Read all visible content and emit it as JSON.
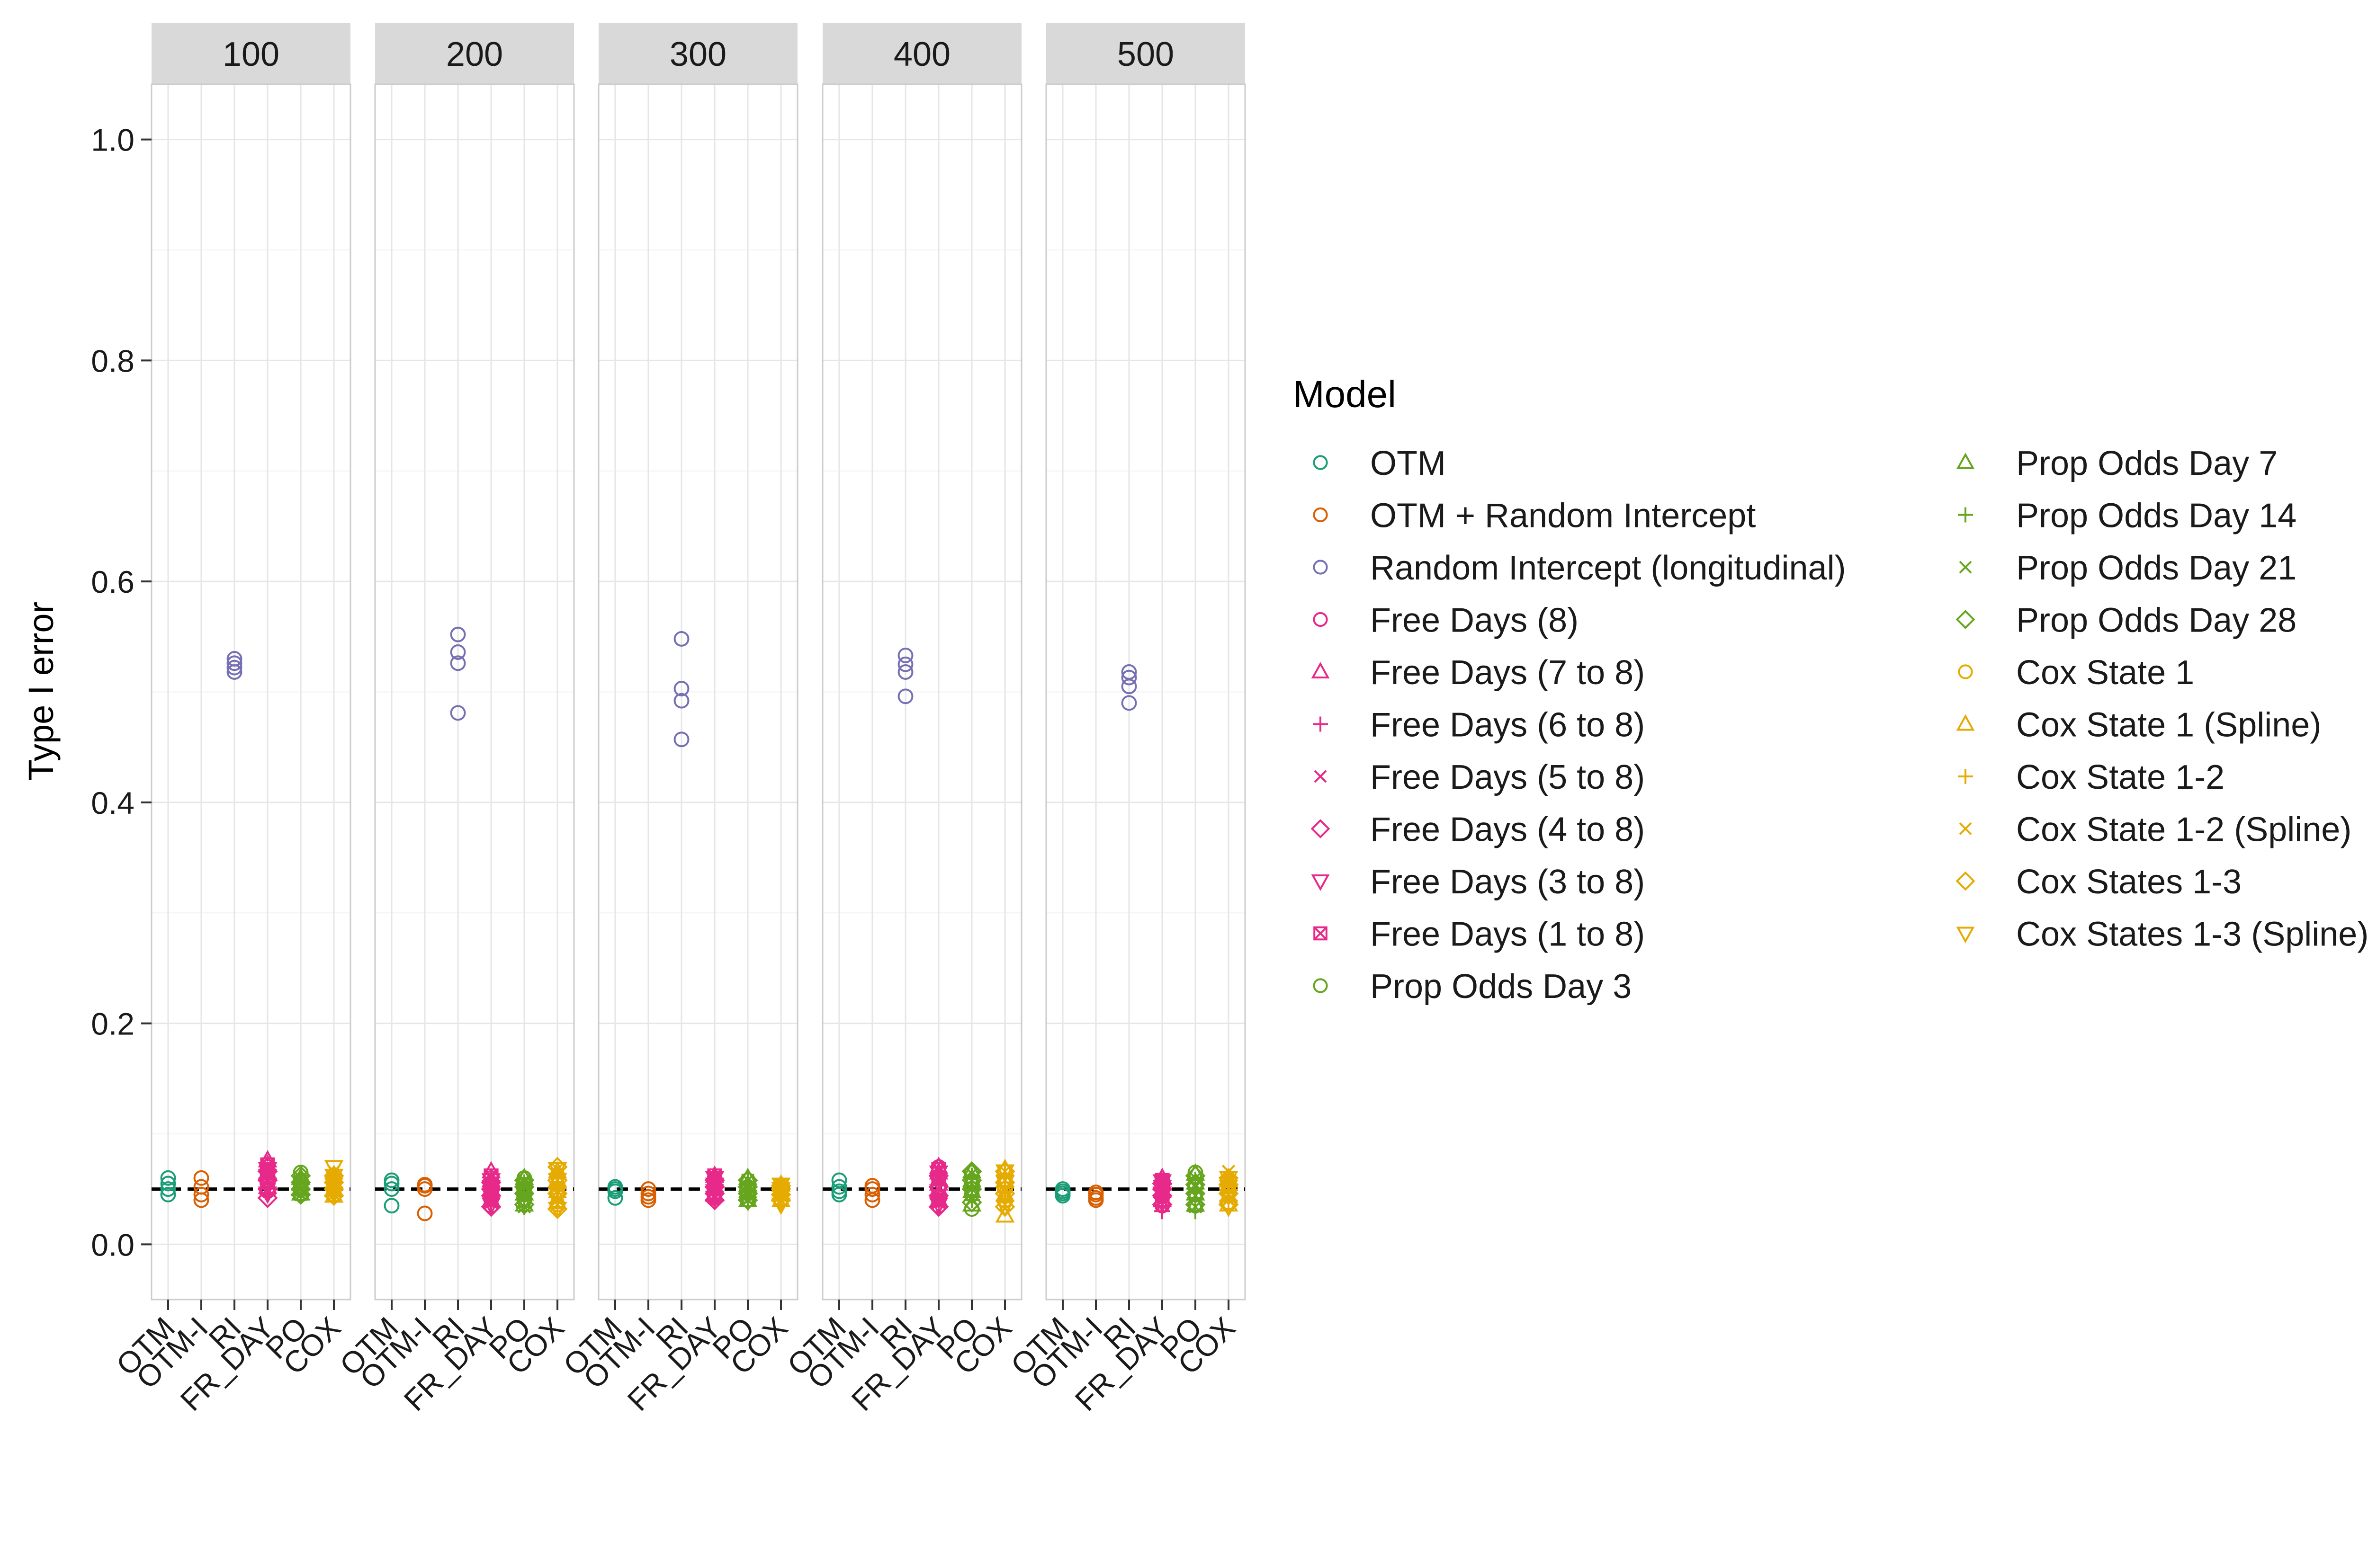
{
  "chart_data": {
    "type": "scatter",
    "facet_variable_values": [
      "100",
      "200",
      "300",
      "400",
      "500"
    ],
    "ylabel": "Type I error",
    "xlabel": "",
    "ylim": [
      -0.05,
      1.05
    ],
    "y_ticks": [
      0.0,
      0.2,
      0.4,
      0.6,
      0.8,
      1.0
    ],
    "y_tick_labels": [
      "0.0",
      "0.2",
      "0.4",
      "0.6",
      "0.8",
      "1.0"
    ],
    "categories": [
      "OTM",
      "OTM-I",
      "RI",
      "FR_DAY",
      "PO",
      "COX"
    ],
    "reference_line": 0.05,
    "grid": true,
    "legend_title": "Model",
    "legend_position": "right",
    "series": [
      {
        "name": "OTM",
        "category": "OTM",
        "shape": "circle",
        "color": "#1B9E77",
        "values": {
          "100": [
            0.045,
            0.05,
            0.055,
            0.06
          ],
          "200": [
            0.035,
            0.05,
            0.055,
            0.058
          ],
          "300": [
            0.042,
            0.048,
            0.05,
            0.052
          ],
          "400": [
            0.045,
            0.048,
            0.052,
            0.058
          ],
          "500": [
            0.044,
            0.046,
            0.048,
            0.05
          ]
        }
      },
      {
        "name": "OTM + Random Intercept",
        "category": "OTM-I",
        "shape": "circle",
        "color": "#D95F02",
        "values": {
          "100": [
            0.04,
            0.045,
            0.052,
            0.06
          ],
          "200": [
            0.028,
            0.05,
            0.053,
            0.054
          ],
          "300": [
            0.04,
            0.043,
            0.046,
            0.05
          ],
          "400": [
            0.04,
            0.045,
            0.05,
            0.053
          ],
          "500": [
            0.04,
            0.042,
            0.045,
            0.047
          ]
        }
      },
      {
        "name": "Random Intercept (longitudinal)",
        "category": "RI",
        "shape": "circle",
        "color": "#7570B3",
        "values": {
          "100": [
            0.518,
            0.522,
            0.526,
            0.53
          ],
          "200": [
            0.481,
            0.526,
            0.536,
            0.552
          ],
          "300": [
            0.457,
            0.492,
            0.503,
            0.548
          ],
          "400": [
            0.496,
            0.518,
            0.525,
            0.533
          ],
          "500": [
            0.49,
            0.505,
            0.513,
            0.518
          ]
        }
      },
      {
        "name": "Free Days (8)",
        "category": "FR_DAY",
        "shape": "circle",
        "color": "#E7298A",
        "values": {
          "100": [
            0.048,
            0.055,
            0.062,
            0.07
          ],
          "200": [
            0.035,
            0.045,
            0.052,
            0.06
          ],
          "300": [
            0.042,
            0.05,
            0.055,
            0.06
          ],
          "400": [
            0.035,
            0.05,
            0.06,
            0.07
          ],
          "500": [
            0.035,
            0.045,
            0.052,
            0.058
          ]
        }
      },
      {
        "name": "Free Days (7 to 8)",
        "category": "FR_DAY",
        "shape": "triangle",
        "color": "#E7298A",
        "values": {
          "100": [
            0.052,
            0.065,
            0.072,
            0.076
          ],
          "200": [
            0.04,
            0.05,
            0.058,
            0.066
          ],
          "300": [
            0.045,
            0.052,
            0.058,
            0.062
          ],
          "400": [
            0.04,
            0.055,
            0.065,
            0.07
          ],
          "500": [
            0.04,
            0.048,
            0.055,
            0.06
          ]
        }
      },
      {
        "name": "Free Days (6 to 8)",
        "category": "FR_DAY",
        "shape": "plus",
        "color": "#E7298A",
        "values": {
          "100": [
            0.045,
            0.055,
            0.06,
            0.065
          ],
          "200": [
            0.035,
            0.042,
            0.05,
            0.058
          ],
          "300": [
            0.04,
            0.048,
            0.052,
            0.058
          ],
          "400": [
            0.036,
            0.046,
            0.055,
            0.064
          ],
          "500": [
            0.03,
            0.042,
            0.05,
            0.056
          ]
        }
      },
      {
        "name": "Free Days (5 to 8)",
        "category": "FR_DAY",
        "shape": "cross",
        "color": "#E7298A",
        "values": {
          "100": [
            0.05,
            0.058,
            0.064,
            0.07
          ],
          "200": [
            0.038,
            0.046,
            0.052,
            0.06
          ],
          "300": [
            0.042,
            0.05,
            0.056,
            0.06
          ],
          "400": [
            0.038,
            0.05,
            0.058,
            0.066
          ],
          "500": [
            0.036,
            0.045,
            0.052,
            0.058
          ]
        }
      },
      {
        "name": "Free Days (4 to 8)",
        "category": "FR_DAY",
        "shape": "diamond",
        "color": "#E7298A",
        "values": {
          "100": [
            0.042,
            0.05,
            0.058,
            0.066
          ],
          "200": [
            0.034,
            0.044,
            0.05,
            0.056
          ],
          "300": [
            0.04,
            0.046,
            0.052,
            0.058
          ],
          "400": [
            0.034,
            0.044,
            0.052,
            0.062
          ],
          "500": [
            0.036,
            0.044,
            0.05,
            0.055
          ]
        }
      },
      {
        "name": "Free Days (3 to 8)",
        "category": "FR_DAY",
        "shape": "triangle-down",
        "color": "#E7298A",
        "values": {
          "100": [
            0.046,
            0.054,
            0.062,
            0.068
          ],
          "200": [
            0.036,
            0.044,
            0.052,
            0.058
          ],
          "300": [
            0.042,
            0.048,
            0.054,
            0.06
          ],
          "400": [
            0.036,
            0.048,
            0.056,
            0.065
          ],
          "500": [
            0.038,
            0.046,
            0.052,
            0.057
          ]
        }
      },
      {
        "name": "Free Days (1 to 8)",
        "category": "FR_DAY",
        "shape": "square-cross",
        "color": "#E7298A",
        "values": {
          "100": [
            0.05,
            0.058,
            0.065,
            0.072
          ],
          "200": [
            0.04,
            0.048,
            0.054,
            0.062
          ],
          "300": [
            0.044,
            0.05,
            0.056,
            0.062
          ],
          "400": [
            0.04,
            0.05,
            0.06,
            0.068
          ],
          "500": [
            0.04,
            0.048,
            0.054,
            0.058
          ]
        }
      },
      {
        "name": "Prop Odds Day 3",
        "category": "PO",
        "shape": "circle",
        "color": "#66A61E",
        "values": {
          "100": [
            0.045,
            0.052,
            0.058,
            0.065
          ],
          "200": [
            0.04,
            0.048,
            0.054,
            0.06
          ],
          "300": [
            0.04,
            0.046,
            0.052,
            0.058
          ],
          "400": [
            0.032,
            0.045,
            0.055,
            0.065
          ],
          "500": [
            0.035,
            0.045,
            0.055,
            0.065
          ]
        }
      },
      {
        "name": "Prop Odds Day 7",
        "category": "PO",
        "shape": "triangle",
        "color": "#66A61E",
        "values": {
          "100": [
            0.046,
            0.05,
            0.055,
            0.06
          ],
          "200": [
            0.036,
            0.046,
            0.052,
            0.06
          ],
          "300": [
            0.04,
            0.048,
            0.054,
            0.06
          ],
          "400": [
            0.036,
            0.048,
            0.058,
            0.066
          ],
          "500": [
            0.036,
            0.046,
            0.056,
            0.064
          ]
        }
      },
      {
        "name": "Prop Odds Day 14",
        "category": "PO",
        "shape": "plus",
        "color": "#66A61E",
        "values": {
          "100": [
            0.044,
            0.05,
            0.054,
            0.058
          ],
          "200": [
            0.034,
            0.044,
            0.05,
            0.056
          ],
          "300": [
            0.038,
            0.045,
            0.05,
            0.056
          ],
          "400": [
            0.04,
            0.05,
            0.056,
            0.062
          ],
          "500": [
            0.03,
            0.042,
            0.05,
            0.058
          ]
        }
      },
      {
        "name": "Prop Odds Day 21",
        "category": "PO",
        "shape": "cross",
        "color": "#66A61E",
        "values": {
          "100": [
            0.045,
            0.05,
            0.056,
            0.06
          ],
          "200": [
            0.034,
            0.046,
            0.052,
            0.058
          ],
          "300": [
            0.04,
            0.046,
            0.052,
            0.058
          ],
          "400": [
            0.04,
            0.05,
            0.058,
            0.064
          ],
          "500": [
            0.034,
            0.044,
            0.052,
            0.06
          ]
        }
      },
      {
        "name": "Prop Odds Day 28",
        "category": "PO",
        "shape": "diamond",
        "color": "#66A61E",
        "values": {
          "100": [
            0.045,
            0.05,
            0.056,
            0.062
          ],
          "200": [
            0.036,
            0.046,
            0.052,
            0.058
          ],
          "300": [
            0.04,
            0.046,
            0.052,
            0.058
          ],
          "400": [
            0.038,
            0.05,
            0.058,
            0.066
          ],
          "500": [
            0.036,
            0.046,
            0.054,
            0.062
          ]
        }
      },
      {
        "name": "Cox State 1",
        "category": "COX",
        "shape": "circle",
        "color": "#E6AB02",
        "values": {
          "100": [
            0.045,
            0.05,
            0.055,
            0.06
          ],
          "200": [
            0.036,
            0.046,
            0.054,
            0.062
          ],
          "300": [
            0.04,
            0.045,
            0.05,
            0.053
          ],
          "400": [
            0.04,
            0.05,
            0.058,
            0.066
          ],
          "500": [
            0.038,
            0.046,
            0.052,
            0.058
          ]
        }
      },
      {
        "name": "Cox State 1 (Spline)",
        "category": "COX",
        "shape": "triangle",
        "color": "#E6AB02",
        "values": {
          "100": [
            0.044,
            0.05,
            0.056,
            0.062
          ],
          "200": [
            0.038,
            0.048,
            0.058,
            0.066
          ],
          "300": [
            0.04,
            0.045,
            0.05,
            0.054
          ],
          "400": [
            0.026,
            0.045,
            0.058,
            0.068
          ],
          "500": [
            0.036,
            0.044,
            0.052,
            0.058
          ]
        }
      },
      {
        "name": "Cox State 1-2",
        "category": "COX",
        "shape": "plus",
        "color": "#E6AB02",
        "values": {
          "100": [
            0.046,
            0.052,
            0.058,
            0.064
          ],
          "200": [
            0.034,
            0.046,
            0.056,
            0.064
          ],
          "300": [
            0.036,
            0.044,
            0.05,
            0.054
          ],
          "400": [
            0.038,
            0.048,
            0.056,
            0.064
          ],
          "500": [
            0.04,
            0.048,
            0.054,
            0.06
          ]
        }
      },
      {
        "name": "Cox State 1-2 (Spline)",
        "category": "COX",
        "shape": "cross",
        "color": "#E6AB02",
        "values": {
          "100": [
            0.045,
            0.052,
            0.06,
            0.066
          ],
          "200": [
            0.036,
            0.048,
            0.058,
            0.068
          ],
          "300": [
            0.04,
            0.046,
            0.05,
            0.054
          ],
          "400": [
            0.036,
            0.048,
            0.058,
            0.066
          ],
          "500": [
            0.04,
            0.05,
            0.058,
            0.066
          ]
        }
      },
      {
        "name": "Cox States 1-3",
        "category": "COX",
        "shape": "diamond",
        "color": "#E6AB02",
        "values": {
          "100": [
            0.044,
            0.05,
            0.056,
            0.062
          ],
          "200": [
            0.032,
            0.046,
            0.058,
            0.07
          ],
          "300": [
            0.04,
            0.045,
            0.05,
            0.053
          ],
          "400": [
            0.034,
            0.046,
            0.056,
            0.066
          ],
          "500": [
            0.036,
            0.046,
            0.054,
            0.06
          ]
        }
      },
      {
        "name": "Cox States 1-3 (Spline)",
        "category": "COX",
        "shape": "triangle-down",
        "color": "#E6AB02",
        "values": {
          "100": [
            0.046,
            0.054,
            0.062,
            0.07
          ],
          "200": [
            0.032,
            0.046,
            0.058,
            0.068
          ],
          "300": [
            0.036,
            0.044,
            0.05,
            0.054
          ],
          "400": [
            0.034,
            0.046,
            0.056,
            0.066
          ],
          "500": [
            0.034,
            0.044,
            0.052,
            0.06
          ]
        }
      }
    ]
  }
}
